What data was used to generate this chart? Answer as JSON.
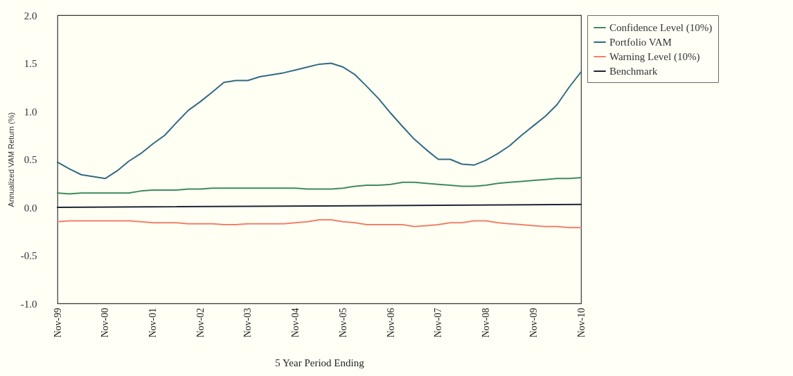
{
  "chart_data": {
    "type": "line",
    "xlabel": "5 Year Period Ending",
    "ylabel": "Annualized VAM Return (%)",
    "x": [
      "1999-11",
      "2000-02",
      "2000-05",
      "2000-08",
      "2000-11",
      "2001-02",
      "2001-05",
      "2001-08",
      "2001-11",
      "2002-02",
      "2002-05",
      "2002-08",
      "2002-11",
      "2003-02",
      "2003-05",
      "2003-08",
      "2003-11",
      "2004-02",
      "2004-05",
      "2004-08",
      "2004-11",
      "2005-02",
      "2005-05",
      "2005-08",
      "2005-11",
      "2006-02",
      "2006-05",
      "2006-08",
      "2006-11",
      "2007-02",
      "2007-05",
      "2007-08",
      "2007-11",
      "2008-02",
      "2008-05",
      "2008-08",
      "2008-11",
      "2009-02",
      "2009-05",
      "2009-08",
      "2009-11",
      "2010-02",
      "2010-05",
      "2010-08",
      "2010-11"
    ],
    "series": [
      {
        "name": "Confidence Level (10%)",
        "color": "#3b8a5c",
        "values": [
          0.15,
          0.14,
          0.15,
          0.15,
          0.15,
          0.15,
          0.15,
          0.17,
          0.18,
          0.18,
          0.18,
          0.19,
          0.19,
          0.2,
          0.2,
          0.2,
          0.2,
          0.2,
          0.2,
          0.2,
          0.2,
          0.19,
          0.19,
          0.19,
          0.2,
          0.22,
          0.23,
          0.23,
          0.24,
          0.26,
          0.26,
          0.25,
          0.24,
          0.23,
          0.22,
          0.22,
          0.23,
          0.25,
          0.26,
          0.27,
          0.28,
          0.29,
          0.3,
          0.3,
          0.31
        ]
      },
      {
        "name": "Portfolio VAM",
        "color": "#2f6a80",
        "values": [
          0.47,
          0.4,
          0.34,
          0.32,
          0.3,
          0.38,
          0.48,
          0.56,
          0.66,
          0.75,
          0.88,
          1.01,
          1.1,
          1.2,
          1.3,
          1.32,
          1.32,
          1.36,
          1.38,
          1.4,
          1.43,
          1.46,
          1.49,
          1.5,
          1.46,
          1.38,
          1.26,
          1.13,
          0.98,
          0.84,
          0.71,
          0.6,
          0.5,
          0.5,
          0.45,
          0.44,
          0.49,
          0.56,
          0.64,
          0.75,
          0.85,
          0.95,
          1.07,
          1.25,
          1.41
        ]
      },
      {
        "name": "Warning Level (10%)",
        "color": "#f0806a",
        "values": [
          -0.15,
          -0.14,
          -0.14,
          -0.14,
          -0.14,
          -0.14,
          -0.14,
          -0.15,
          -0.16,
          -0.16,
          -0.16,
          -0.17,
          -0.17,
          -0.17,
          -0.18,
          -0.18,
          -0.17,
          -0.17,
          -0.17,
          -0.17,
          -0.16,
          -0.15,
          -0.13,
          -0.13,
          -0.15,
          -0.16,
          -0.18,
          -0.18,
          -0.18,
          -0.18,
          -0.2,
          -0.19,
          -0.18,
          -0.16,
          -0.16,
          -0.14,
          -0.14,
          -0.16,
          -0.17,
          -0.18,
          -0.19,
          -0.2,
          -0.2,
          -0.21,
          -0.21
        ]
      },
      {
        "name": "Benchmark",
        "color": "#1c2233",
        "x": [
          "1999-11",
          "2010-11"
        ],
        "values": [
          0,
          0.03
        ]
      }
    ],
    "xlim": [
      "1999-11",
      "2010-11"
    ],
    "xticks": [
      {
        "value": "1999-11",
        "label": "Nov-99"
      },
      {
        "value": "2000-11",
        "label": "Nov-00"
      },
      {
        "value": "2001-11",
        "label": "Nov-01"
      },
      {
        "value": "2002-11",
        "label": "Nov-02"
      },
      {
        "value": "2003-11",
        "label": "Nov-03"
      },
      {
        "value": "2004-11",
        "label": "Nov-04"
      },
      {
        "value": "2005-11",
        "label": "Nov-05"
      },
      {
        "value": "2006-11",
        "label": "Nov-06"
      },
      {
        "value": "2007-11",
        "label": "Nov-07"
      },
      {
        "value": "2008-11",
        "label": "Nov-08"
      },
      {
        "value": "2009-11",
        "label": "Nov-09"
      },
      {
        "value": "2010-11",
        "label": "Nov-10"
      }
    ],
    "ylim": [
      -1,
      2
    ],
    "yticks": [
      {
        "value": -1,
        "label": "-1.0"
      },
      {
        "value": -0.5,
        "label": "-0.5"
      },
      {
        "value": 0,
        "label": "0.0"
      },
      {
        "value": 0.5,
        "label": "0.5"
      },
      {
        "value": 1,
        "label": "1.0"
      },
      {
        "value": 1.5,
        "label": "1.5"
      },
      {
        "value": 2,
        "label": "2.0"
      }
    ],
    "legend": "right",
    "line_style": "solid",
    "marker": "none"
  }
}
